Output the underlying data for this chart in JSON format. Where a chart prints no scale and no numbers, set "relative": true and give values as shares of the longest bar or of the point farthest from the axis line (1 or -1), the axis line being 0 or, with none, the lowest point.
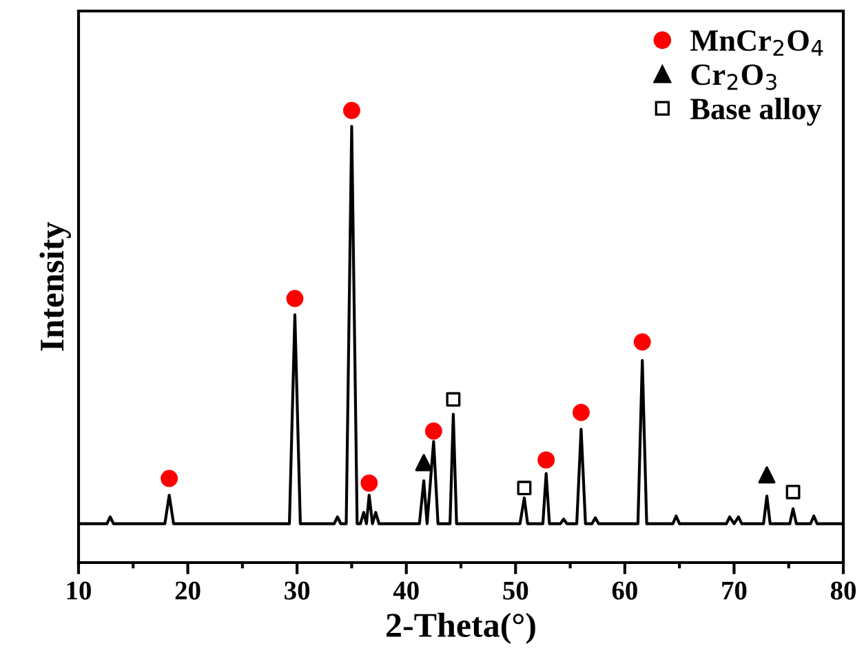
{
  "chart_data": {
    "type": "line",
    "xlabel": "2-Theta(°)",
    "ylabel": "Intensity",
    "relative": true,
    "xlim": [
      10,
      80
    ],
    "xticks": [
      10,
      20,
      30,
      40,
      50,
      60,
      70,
      80
    ],
    "grid": false,
    "legend": "top right",
    "series": [
      {
        "color": "#000000",
        "marker": "none",
        "x": [
          10,
          12.6,
          12.9,
          13.2,
          17.9,
          18.3,
          18.7,
          29.3,
          29.8,
          30.3,
          33.4,
          33.7,
          34.0,
          34.5,
          35.0,
          35.5,
          35.8,
          36.1,
          36.35,
          36.6,
          36.9,
          37.2,
          37.5,
          37.8,
          41.2,
          41.6,
          41.9,
          42.5,
          42.9,
          44.0,
          44.3,
          44.6,
          50.4,
          50.8,
          51.1,
          52.5,
          52.8,
          53.1,
          54.1,
          54.4,
          54.7,
          55.6,
          56.0,
          56.4,
          57.0,
          57.3,
          57.6,
          61.2,
          61.6,
          62.0,
          64.4,
          64.7,
          65.0,
          69.3,
          69.6,
          70.0,
          70.4,
          70.7,
          72.7,
          73.0,
          73.3,
          75.1,
          75.4,
          75.7,
          77.0,
          77.3,
          77.6,
          80
        ],
        "values": [
          0.086,
          0.086,
          0.101,
          0.086,
          0.086,
          0.149,
          0.086,
          0.086,
          0.548,
          0.086,
          0.086,
          0.101,
          0.086,
          0.086,
          0.965,
          0.086,
          0.086,
          0.111,
          0.086,
          0.149,
          0.086,
          0.111,
          0.086,
          0.086,
          0.086,
          0.181,
          0.086,
          0.268,
          0.086,
          0.086,
          0.328,
          0.086,
          0.086,
          0.143,
          0.086,
          0.086,
          0.197,
          0.086,
          0.086,
          0.096,
          0.086,
          0.086,
          0.295,
          0.086,
          0.086,
          0.099,
          0.086,
          0.086,
          0.447,
          0.086,
          0.086,
          0.103,
          0.086,
          0.086,
          0.101,
          0.086,
          0.101,
          0.086,
          0.086,
          0.147,
          0.086,
          0.086,
          0.119,
          0.086,
          0.086,
          0.103,
          0.086,
          0.086
        ]
      },
      {
        "name": "MnCr$_{2}$O$_{4}$",
        "type": "scatter",
        "marker": "circle",
        "color": "#ff0000",
        "x": [
          18.3,
          29.8,
          35.0,
          36.6,
          42.5,
          52.8,
          56.0,
          61.6
        ],
        "values": [
          0.186,
          0.584,
          1.0,
          0.176,
          0.291,
          0.227,
          0.332,
          0.488
        ]
      },
      {
        "name": "Cr$_{2}$O$_{3}$",
        "type": "scatter",
        "marker": "triangle",
        "color": "#000000",
        "x": [
          41.6,
          73.0
        ],
        "values": [
          0.221,
          0.194
        ]
      },
      {
        "name": "Base alloy",
        "type": "scatter",
        "marker": "square",
        "color": "#000000",
        "x": [
          44.3,
          50.8,
          75.4
        ],
        "values": [
          0.361,
          0.165,
          0.156
        ]
      }
    ]
  }
}
